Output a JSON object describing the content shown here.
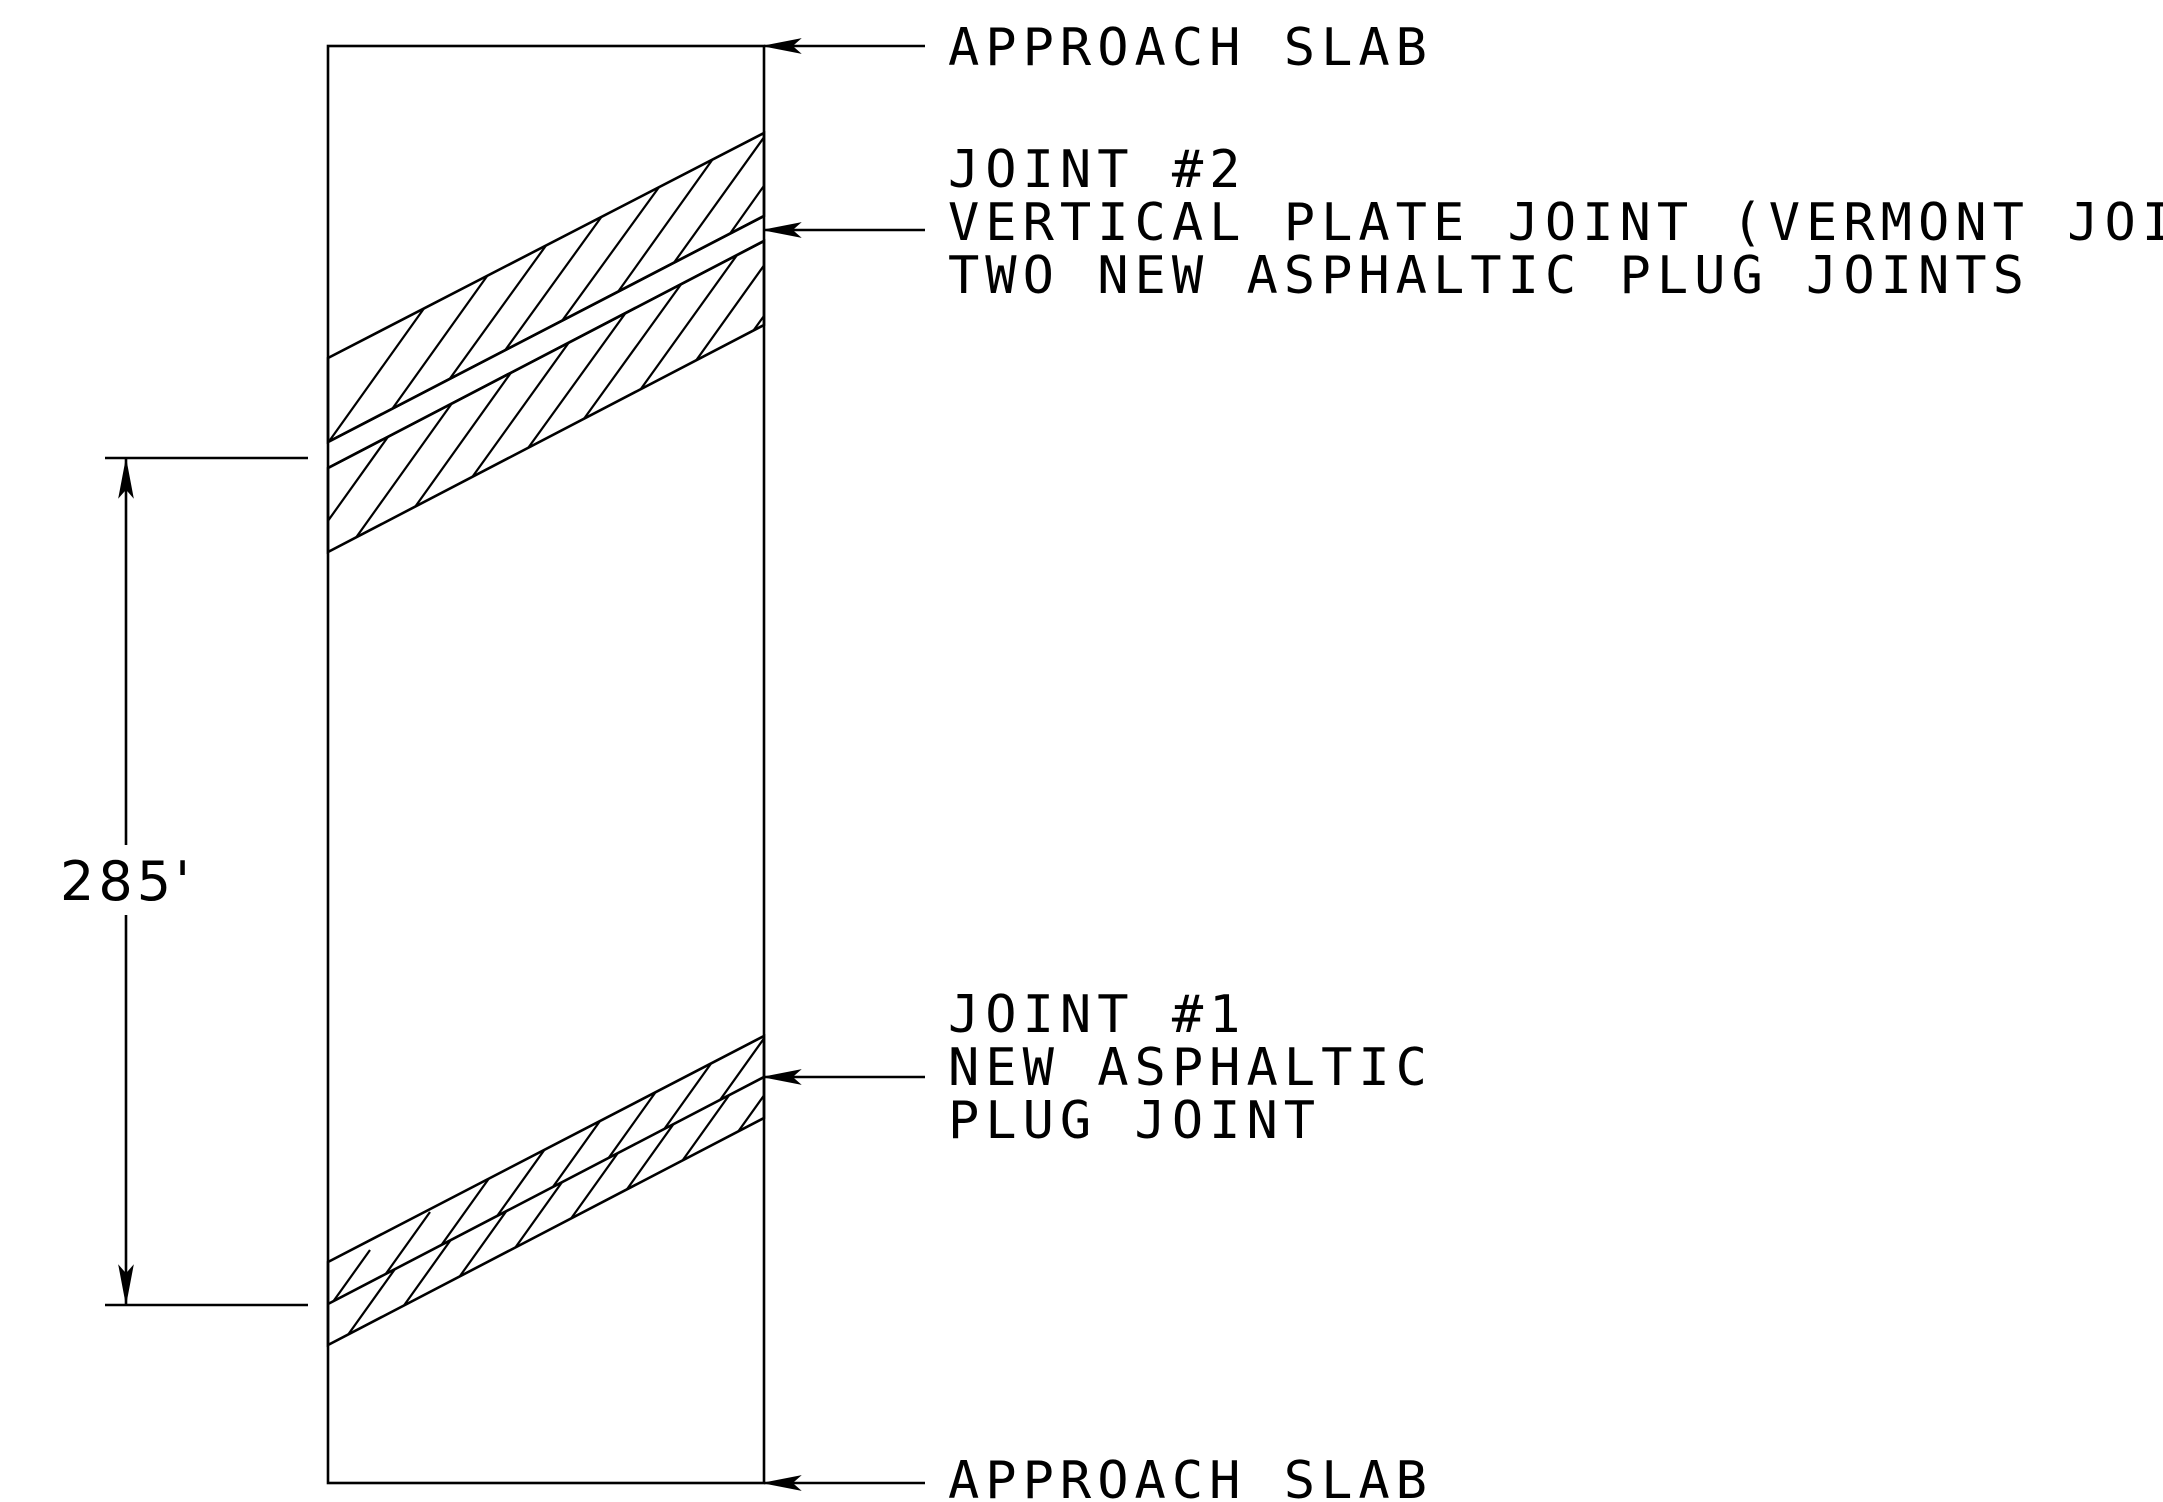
{
  "labels": {
    "approach_slab_top": "APPROACH SLAB",
    "joint2_line1": "JOINT #2",
    "joint2_line2": "VERTICAL PLATE JOINT (VERMONT JOINT)",
    "joint2_line3": "TWO NEW ASPHALTIC PLUG JOINTS",
    "joint1_line1": "JOINT #1",
    "joint1_line2": "NEW ASPHALTIC",
    "joint1_line3": "PLUG JOINT",
    "approach_slab_bottom": "APPROACH SLAB"
  },
  "dimension": {
    "text": "285'"
  },
  "colors": {
    "line": "#000000",
    "background": "#ffffff"
  }
}
